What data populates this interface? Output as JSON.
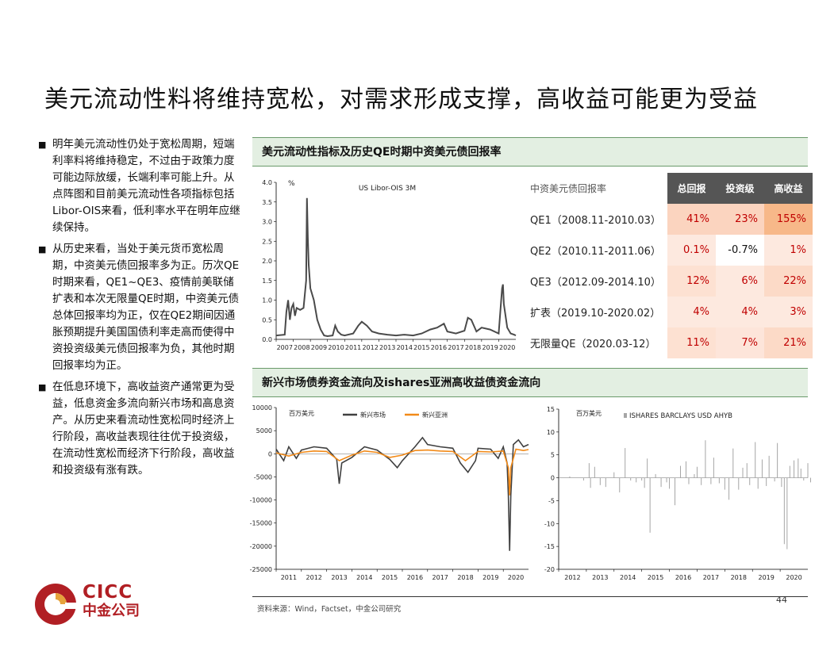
{
  "title": "美元流动性料将维持宽松，对需求形成支撑，高收益可能更为受益",
  "bullets": [
    "明年美元流动性仍处于宽松周期，短端利率料将维持稳定，不过由于政策力度可能边际放缓，长端利率可能上升。从点阵图和目前美元流动性各项指标包括Libor-OIS来看，低利率水平在明年应继续保持。",
    "从历史来看，当处于美元货币宽松周期，中资美元债回报率多为正。历次QE时期来看，QE1~QE3、疫情前美联储扩表和本次无限量QE时期，中资美元债总体回报率均为正，仅在QE2期间因通胀预期提升美国国债利率走高而使得中资投资级美元债回报率为负，其他时期回报率均为正。",
    "在低息环境下，高收益资产通常更为受益，低息资金多流向新兴市场和高息资产。从历史来看流动性宽松同时经济上行阶段，高收益表现往往优于投资级，在流动性宽松而经济下行阶段，高收益和投资级有涨有跌。"
  ],
  "section1": {
    "title": "美元流动性指标及历史QE时期中资美元债回报率"
  },
  "section2": {
    "title": "新兴市场债券资金流向及ishares亚洲高收益债资金流向"
  },
  "table": {
    "header": [
      "中资美元债回报率",
      "总回报",
      "投资级",
      "高收益"
    ],
    "rows": [
      {
        "label": "QE1（2008.11-2010.03）",
        "values": [
          "41%",
          "23%",
          "155%"
        ]
      },
      {
        "label": "QE2（2010.11-2011.06）",
        "values": [
          "0.1%",
          "-0.7%",
          "1%"
        ]
      },
      {
        "label": "QE3（2012.09-2014.10）",
        "values": [
          "12%",
          "6%",
          "22%"
        ]
      },
      {
        "label": "扩表（2019.10-2020.02）",
        "values": [
          "4%",
          "4%",
          "3%"
        ]
      },
      {
        "label": "无限量QE（2020.03-12）",
        "values": [
          "11%",
          "7%",
          "21%"
        ]
      }
    ],
    "cell_colors": [
      [
        "#fbd4bf",
        "#fbd4bf",
        "#f7b889"
      ],
      [
        "#fde9df",
        "#ffffff",
        "#fde9df"
      ],
      [
        "#fde1d2",
        "#fde9df",
        "#fcdac7"
      ],
      [
        "#fde9df",
        "#fde9df",
        "#fde9df"
      ],
      [
        "#fde1d2",
        "#fde5da",
        "#fcdac7"
      ]
    ]
  },
  "chart_data": [
    {
      "type": "line",
      "title": "US Libor-OIS 3M",
      "ylabel": "%",
      "ylim": [
        0,
        4
      ],
      "yticks": [
        "0.0",
        "0.5",
        "1.0",
        "1.5",
        "2.0",
        "2.5",
        "3.0",
        "3.5",
        "4.0"
      ],
      "xticks": [
        "2007",
        "2008",
        "2009",
        "2010",
        "2011",
        "2012",
        "2013",
        "2014",
        "2015",
        "2016",
        "2017",
        "2018",
        "2019",
        "2020"
      ],
      "series": [
        {
          "color": "#4a4a4a",
          "points": [
            [
              2007.0,
              0.1
            ],
            [
              2007.5,
              0.12
            ],
            [
              2007.6,
              0.7
            ],
            [
              2007.7,
              1.0
            ],
            [
              2007.8,
              0.5
            ],
            [
              2007.9,
              0.8
            ],
            [
              2008.0,
              0.9
            ],
            [
              2008.1,
              0.6
            ],
            [
              2008.2,
              0.8
            ],
            [
              2008.4,
              0.75
            ],
            [
              2008.6,
              0.8
            ],
            [
              2008.75,
              1.5
            ],
            [
              2008.8,
              3.6
            ],
            [
              2008.85,
              2.6
            ],
            [
              2008.9,
              1.9
            ],
            [
              2009.0,
              1.3
            ],
            [
              2009.2,
              1.0
            ],
            [
              2009.4,
              0.5
            ],
            [
              2009.6,
              0.25
            ],
            [
              2009.8,
              0.1
            ],
            [
              2010.0,
              0.08
            ],
            [
              2010.3,
              0.1
            ],
            [
              2010.45,
              0.35
            ],
            [
              2010.6,
              0.2
            ],
            [
              2010.8,
              0.12
            ],
            [
              2011.0,
              0.1
            ],
            [
              2011.5,
              0.15
            ],
            [
              2011.8,
              0.35
            ],
            [
              2012.0,
              0.45
            ],
            [
              2012.3,
              0.35
            ],
            [
              2012.6,
              0.2
            ],
            [
              2013.0,
              0.15
            ],
            [
              2013.5,
              0.12
            ],
            [
              2014.0,
              0.1
            ],
            [
              2014.5,
              0.12
            ],
            [
              2015.0,
              0.1
            ],
            [
              2015.5,
              0.15
            ],
            [
              2016.0,
              0.25
            ],
            [
              2016.4,
              0.3
            ],
            [
              2016.8,
              0.4
            ],
            [
              2017.0,
              0.2
            ],
            [
              2017.5,
              0.15
            ],
            [
              2018.0,
              0.22
            ],
            [
              2018.2,
              0.55
            ],
            [
              2018.4,
              0.5
            ],
            [
              2018.7,
              0.2
            ],
            [
              2019.0,
              0.3
            ],
            [
              2019.5,
              0.25
            ],
            [
              2020.0,
              0.15
            ],
            [
              2020.2,
              1.3
            ],
            [
              2020.25,
              1.4
            ],
            [
              2020.3,
              0.9
            ],
            [
              2020.5,
              0.3
            ],
            [
              2020.7,
              0.15
            ],
            [
              2020.9,
              0.12
            ],
            [
              2021.0,
              0.1
            ]
          ]
        }
      ],
      "grid": false
    },
    {
      "type": "line",
      "ylabel": "百万美元",
      "ylim": [
        -25000,
        10000
      ],
      "yticks": [
        "10000",
        "5000",
        "0",
        "-5000",
        "-10000",
        "-15000",
        "-20000",
        "-25000"
      ],
      "xticks": [
        "2011",
        "2012",
        "2013",
        "2014",
        "2015",
        "2016",
        "2017",
        "2018",
        "2019",
        "2020"
      ],
      "legend": "top",
      "series": [
        {
          "name": "新兴市场",
          "color": "#404040",
          "points": [
            [
              2011.0,
              1000
            ],
            [
              2011.3,
              -1500
            ],
            [
              2011.5,
              1500
            ],
            [
              2011.8,
              -1000
            ],
            [
              2012.0,
              800
            ],
            [
              2012.5,
              1500
            ],
            [
              2013.0,
              1200
            ],
            [
              2013.4,
              -1200
            ],
            [
              2013.5,
              -6500
            ],
            [
              2013.6,
              -2000
            ],
            [
              2014.0,
              -800
            ],
            [
              2014.5,
              1500
            ],
            [
              2015.0,
              800
            ],
            [
              2015.5,
              -1200
            ],
            [
              2015.8,
              -3000
            ],
            [
              2016.0,
              -1500
            ],
            [
              2016.5,
              1500
            ],
            [
              2016.8,
              3500
            ],
            [
              2017.0,
              2000
            ],
            [
              2017.5,
              1500
            ],
            [
              2018.0,
              1200
            ],
            [
              2018.3,
              -2000
            ],
            [
              2018.6,
              -4000
            ],
            [
              2018.9,
              -1500
            ],
            [
              2019.0,
              1200
            ],
            [
              2019.5,
              1000
            ],
            [
              2019.8,
              -1000
            ],
            [
              2020.0,
              1500
            ],
            [
              2020.15,
              -2000
            ],
            [
              2020.2,
              -9000
            ],
            [
              2020.25,
              -21000
            ],
            [
              2020.3,
              -9000
            ],
            [
              2020.4,
              2000
            ],
            [
              2020.6,
              3000
            ],
            [
              2020.8,
              1500
            ],
            [
              2021.0,
              2000
            ]
          ]
        },
        {
          "name": "新兴亚洲",
          "color": "#f28a18",
          "points": [
            [
              2011.0,
              200
            ],
            [
              2011.5,
              -500
            ],
            [
              2012.0,
              300
            ],
            [
              2012.5,
              600
            ],
            [
              2013.0,
              500
            ],
            [
              2013.5,
              -1500
            ],
            [
              2014.0,
              -300
            ],
            [
              2014.5,
              600
            ],
            [
              2015.0,
              300
            ],
            [
              2015.5,
              -800
            ],
            [
              2016.0,
              -300
            ],
            [
              2016.5,
              700
            ],
            [
              2017.0,
              800
            ],
            [
              2017.5,
              600
            ],
            [
              2018.0,
              500
            ],
            [
              2018.5,
              -1500
            ],
            [
              2019.0,
              500
            ],
            [
              2019.5,
              400
            ],
            [
              2020.0,
              600
            ],
            [
              2020.2,
              -3000
            ],
            [
              2020.25,
              -9000
            ],
            [
              2020.3,
              -3000
            ],
            [
              2020.5,
              1000
            ],
            [
              2020.8,
              700
            ],
            [
              2021.0,
              900
            ]
          ]
        }
      ]
    },
    {
      "type": "bar",
      "ylabel": "百万美元",
      "ylim": [
        -20,
        15
      ],
      "yticks": [
        "15",
        "10",
        "5",
        "0",
        "-5",
        "-10",
        "-15",
        "-20"
      ],
      "xticks": [
        "2012",
        "2013",
        "2014",
        "2015",
        "2016",
        "2017",
        "2018",
        "2019",
        "2020"
      ],
      "legend": "top",
      "series": [
        {
          "name": "ISHARES BARCLAYS USD AHYB",
          "color": "#a6a6a6",
          "values": [
            [
              2012.4,
              0.3
            ],
            [
              2012.9,
              -0.6
            ],
            [
              2013.1,
              3.2
            ],
            [
              2013.15,
              -2.2
            ],
            [
              2013.3,
              2.4
            ],
            [
              2013.5,
              -1.6
            ],
            [
              2013.7,
              -2.0
            ],
            [
              2014.0,
              1.2
            ],
            [
              2014.2,
              -3.2
            ],
            [
              2014.4,
              6.5
            ],
            [
              2014.6,
              -0.6
            ],
            [
              2014.8,
              -1.0
            ],
            [
              2015.0,
              -0.6
            ],
            [
              2015.1,
              -2.2
            ],
            [
              2015.2,
              4.2
            ],
            [
              2015.3,
              -12.0
            ],
            [
              2015.5,
              0.8
            ],
            [
              2015.7,
              -2.0
            ],
            [
              2015.9,
              -1.0
            ],
            [
              2016.0,
              -2.4
            ],
            [
              2016.2,
              -6.0
            ],
            [
              2016.4,
              2.6
            ],
            [
              2016.6,
              3.6
            ],
            [
              2016.7,
              -1.4
            ],
            [
              2016.9,
              0.8
            ],
            [
              2017.0,
              2.4
            ],
            [
              2017.15,
              -1.6
            ],
            [
              2017.3,
              8.2
            ],
            [
              2017.5,
              -1.4
            ],
            [
              2017.6,
              4.4
            ],
            [
              2017.8,
              -1.2
            ],
            [
              2018.0,
              -2.6
            ],
            [
              2018.15,
              -4.8
            ],
            [
              2018.3,
              6.4
            ],
            [
              2018.5,
              -2.6
            ],
            [
              2018.65,
              2.2
            ],
            [
              2018.8,
              3.2
            ],
            [
              2018.9,
              -1.6
            ],
            [
              2019.1,
              7.8
            ],
            [
              2019.2,
              -2.4
            ],
            [
              2019.35,
              4.0
            ],
            [
              2019.5,
              -1.8
            ],
            [
              2019.6,
              4.8
            ],
            [
              2019.8,
              -0.8
            ],
            [
              2019.9,
              7.6
            ],
            [
              2020.05,
              -2.0
            ],
            [
              2020.15,
              -14.5
            ],
            [
              2020.25,
              -15.6
            ],
            [
              2020.35,
              2.6
            ],
            [
              2020.5,
              3.8
            ],
            [
              2020.65,
              4.2
            ],
            [
              2020.75,
              2.0
            ],
            [
              2020.85,
              -0.6
            ],
            [
              2021.0,
              3.2
            ],
            [
              2021.1,
              -1.0
            ]
          ]
        }
      ],
      "grid": false
    }
  ],
  "source": "资料来源：Wind，Factset，中金公司研究",
  "page_number": "44",
  "logo": {
    "brand": "CICC",
    "cn": "中金公司"
  }
}
